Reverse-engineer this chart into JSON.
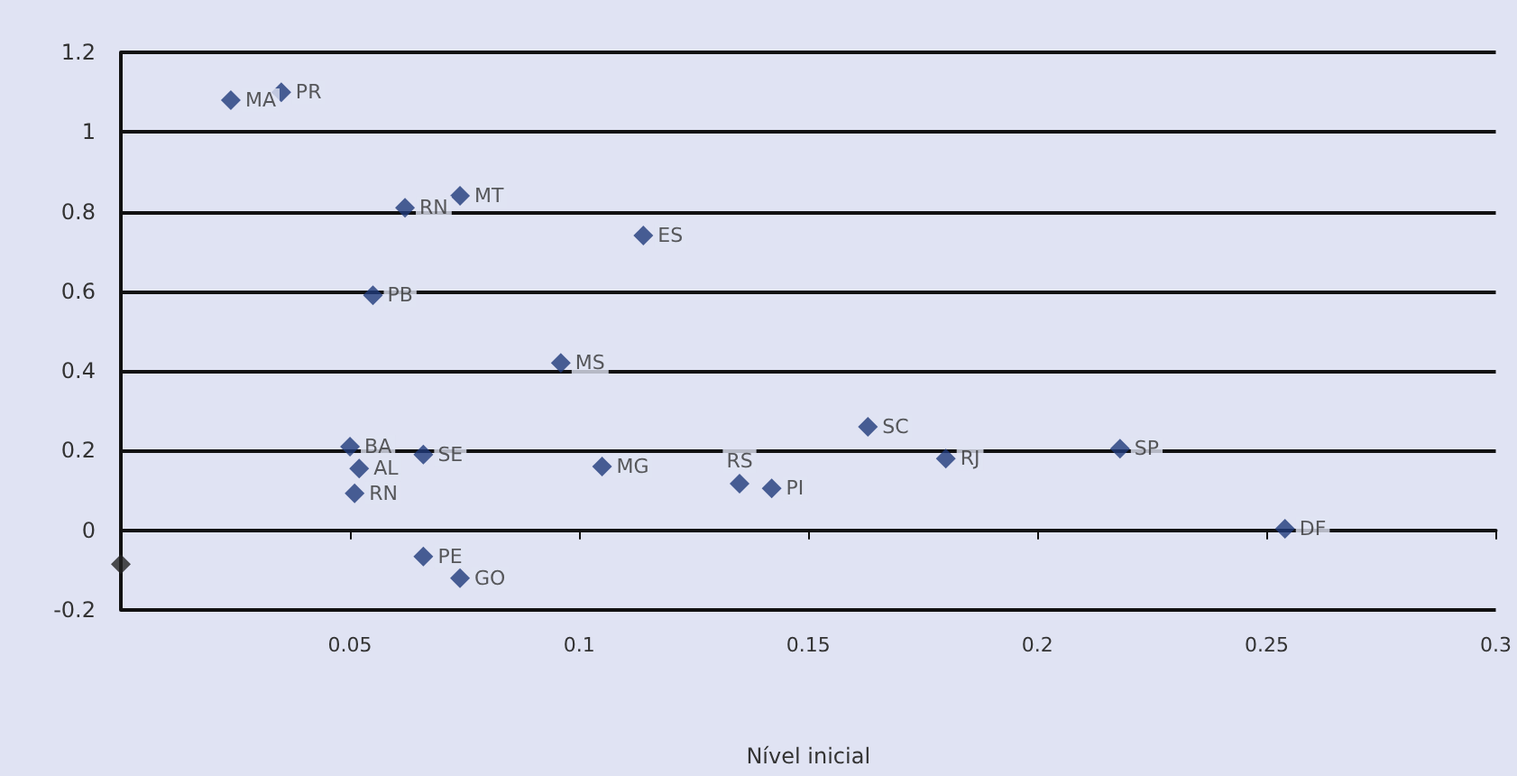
{
  "chart_data": {
    "type": "scatter",
    "xlabel": "Nível inicial",
    "series": [
      {
        "color": "#1f3a7a",
        "x": [
          0.024,
          0.035,
          0.062,
          0.074,
          0.114,
          0.055,
          0.096,
          0.05,
          0.052,
          0.051,
          0.066,
          0.066,
          0.074,
          0.105,
          0.135,
          0.142,
          0.163,
          0.18,
          0.218,
          0.254
        ],
        "values": [
          1.08,
          1.1,
          0.81,
          0.84,
          0.74,
          0.59,
          0.42,
          0.21,
          0.155,
          0.093,
          0.19,
          -0.066,
          -0.12,
          0.16,
          0.117,
          0.105,
          0.26,
          0.18,
          0.205,
          0.004
        ]
      },
      {
        "color": "#222222",
        "x": [
          0
        ],
        "values": [
          -0.085
        ]
      }
    ],
    "annotations": [
      {
        "text": "MA",
        "x": 0.024,
        "y": 1.08
      },
      {
        "text": "PR",
        "x": 0.035,
        "y": 1.1
      },
      {
        "text": "RN",
        "x": 0.062,
        "y": 0.81
      },
      {
        "text": "MT",
        "x": 0.074,
        "y": 0.84
      },
      {
        "text": "ES",
        "x": 0.114,
        "y": 0.74
      },
      {
        "text": "PB",
        "x": 0.055,
        "y": 0.59
      },
      {
        "text": "MS",
        "x": 0.096,
        "y": 0.42
      },
      {
        "text": "BA",
        "x": 0.05,
        "y": 0.21
      },
      {
        "text": "AL",
        "x": 0.052,
        "y": 0.155
      },
      {
        "text": "RN",
        "x": 0.051,
        "y": 0.093
      },
      {
        "text": "SE",
        "x": 0.066,
        "y": 0.19
      },
      {
        "text": "PE",
        "x": 0.066,
        "y": -0.066
      },
      {
        "text": "GO",
        "x": 0.074,
        "y": -0.12
      },
      {
        "text": "MG",
        "x": 0.105,
        "y": 0.16
      },
      {
        "text": "RS",
        "x": 0.135,
        "y": 0.117
      },
      {
        "text": "PI",
        "x": 0.142,
        "y": 0.105
      },
      {
        "text": "SC",
        "x": 0.163,
        "y": 0.26
      },
      {
        "text": "RJ",
        "x": 0.18,
        "y": 0.18
      },
      {
        "text": "SP",
        "x": 0.218,
        "y": 0.205
      },
      {
        "text": "DF",
        "x": 0.254,
        "y": 0.004
      }
    ],
    "xlim": [
      0,
      0.3
    ],
    "xticks": [
      0.05,
      0.1,
      0.15,
      0.2,
      0.25,
      0.3
    ],
    "ylim": [
      -0.2,
      1.2
    ],
    "yticks": [
      -0.2,
      0,
      0.2,
      0.4,
      0.6,
      0.8,
      1,
      1.2
    ],
    "grid": "y",
    "marker": "diamond"
  }
}
